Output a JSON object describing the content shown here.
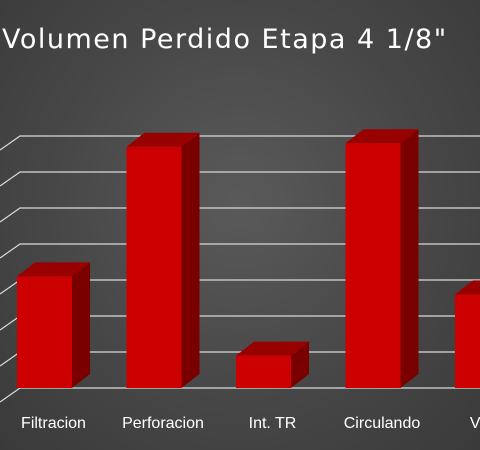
{
  "chart_data": {
    "type": "bar",
    "title": "Volumen Perdido Etapa 4 1/8\"",
    "categories": [
      "Filtracion",
      "Perforacion",
      "Int. TR",
      "Circulando",
      "Viajes"
    ],
    "values": [
      3.1,
      6.7,
      0.9,
      6.8,
      2.6
    ],
    "xlabel": "",
    "ylabel": "",
    "ylim": [
      0,
      7
    ],
    "grid": true,
    "legend": "none",
    "style": "3d-column",
    "colors": {
      "bar_front": "#cc0000",
      "bar_top": "#990000",
      "bar_side": "#7a0000",
      "grid": "#d9d9d9",
      "text": "#ffffff"
    }
  }
}
